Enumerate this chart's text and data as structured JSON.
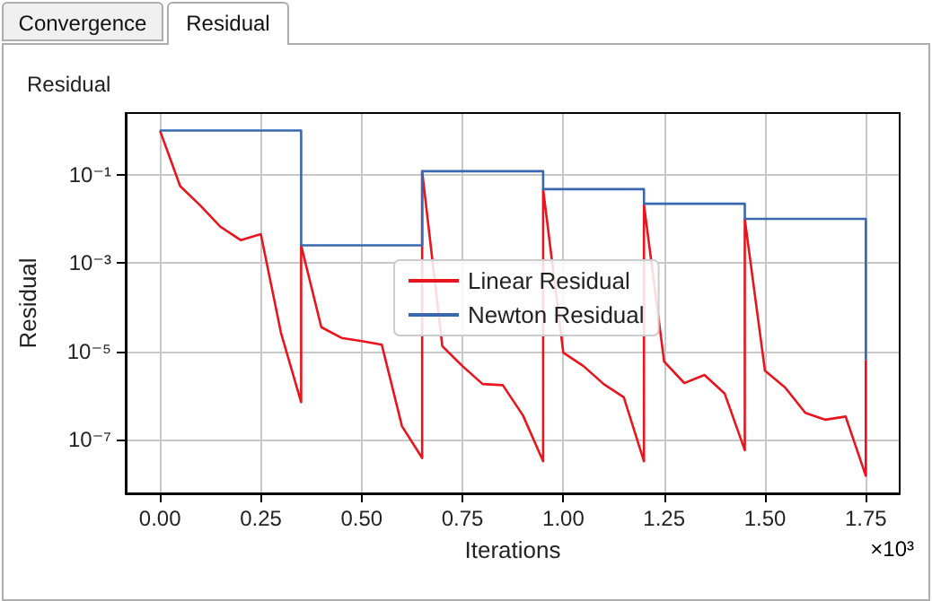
{
  "chart_data": {
    "type": "line",
    "title": "Residual",
    "xlabel": "Iterations",
    "ylabel": "Residual",
    "annotations": [
      "Convergence",
      "Residual",
      "×10³"
    ],
    "log": "y",
    "grid": true,
    "legend": "center",
    "marker": "none",
    "line_style": "solid",
    "xlim": [
      -0.085,
      1.834
    ],
    "ylim": [
      6e-09,
      2.5
    ],
    "xticks": [
      {
        "value": 0,
        "label": "0.00"
      },
      {
        "value": 0.25,
        "label": "0.25"
      },
      {
        "value": 0.5,
        "label": "0.50"
      },
      {
        "value": 0.75,
        "label": "0.75"
      },
      {
        "value": 1,
        "label": "1.00"
      },
      {
        "value": 1.25,
        "label": "1.25"
      },
      {
        "value": 1.5,
        "label": "1.50"
      },
      {
        "value": 1.75,
        "label": "1.75"
      }
    ],
    "yticks": [
      {
        "value": 0.1,
        "label": "10⁻¹"
      },
      {
        "value": 0.001,
        "label": "10⁻³"
      },
      {
        "value": 1e-05,
        "label": "10⁻⁵"
      },
      {
        "value": 1e-07,
        "label": "10⁻⁷"
      }
    ],
    "series": [
      {
        "name": "Linear Residual",
        "color": "#e8141e",
        "x": [
          0,
          0.05,
          0.1,
          0.15,
          0.2,
          0.25,
          0.3,
          0.35,
          0.35,
          0.4,
          0.45,
          0.5,
          0.55,
          0.6,
          0.65,
          0.65,
          0.7,
          0.75,
          0.8,
          0.85,
          0.9,
          0.95,
          0.95,
          1.0,
          1.05,
          1.1,
          1.15,
          1.2,
          1.2,
          1.25,
          1.3,
          1.35,
          1.4,
          1.45,
          1.45,
          1.5,
          1.55,
          1.6,
          1.65,
          1.7,
          1.75,
          1.75
        ],
        "values": [
          1.0,
          0.055,
          0.02,
          0.0066,
          0.0033,
          0.0045,
          2.6e-05,
          7e-07,
          0.0025,
          3.5e-05,
          2e-05,
          1.7e-05,
          1.4e-05,
          2e-07,
          3.8e-08,
          0.12,
          1.3e-05,
          4.6e-06,
          1.8e-06,
          1.7e-06,
          3.5e-07,
          3.2e-08,
          0.047,
          9.3e-06,
          4.6e-06,
          1.8e-06,
          9e-07,
          3.2e-08,
          0.021,
          5.8e-06,
          1.9e-06,
          2.9e-06,
          1.1e-06,
          5.7e-08,
          0.0098,
          3.6e-06,
          1.5e-06,
          4e-07,
          2.8e-07,
          3.3e-07,
          1.5e-08,
          6.3e-06
        ]
      },
      {
        "name": "Newton Residual",
        "type": "step",
        "color": "#3a68b0",
        "x": [
          0,
          0.35,
          0.65,
          0.95,
          1.2,
          1.45,
          1.75
        ],
        "values": [
          1.0,
          0.0025,
          0.12,
          0.047,
          0.022,
          0.01,
          6.3e-06
        ]
      }
    ]
  }
}
